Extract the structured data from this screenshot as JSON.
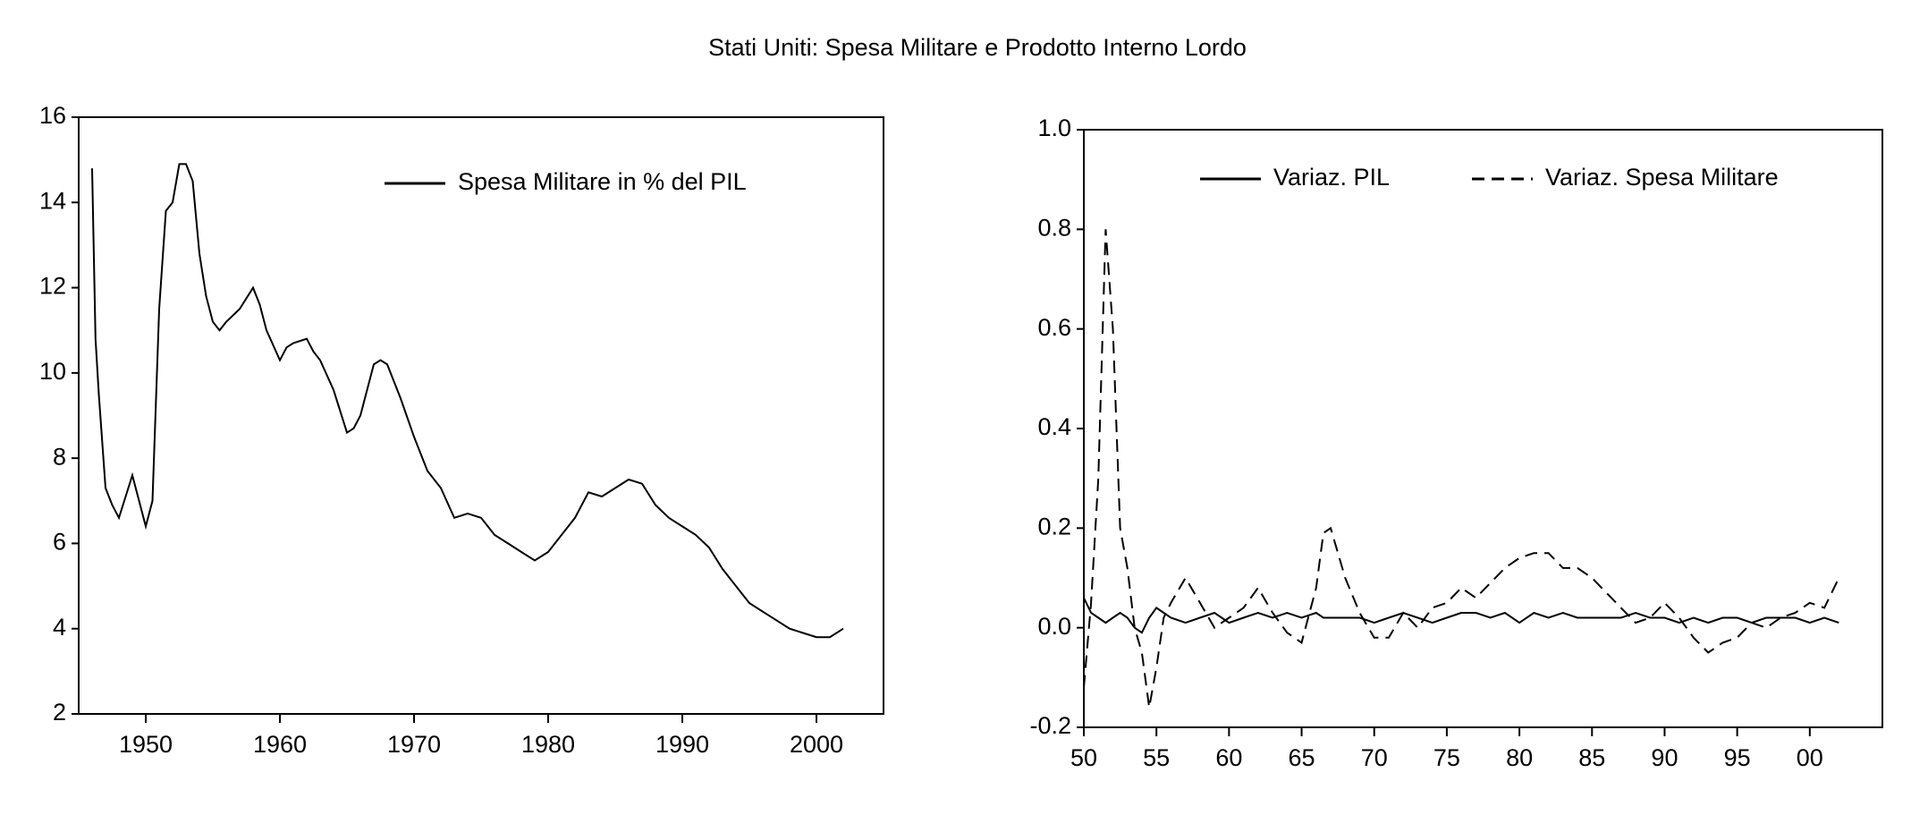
{
  "title": "Stati Uniti: Spesa Militare e Prodotto Interno Lordo",
  "chart_data": [
    {
      "type": "line",
      "x": [
        1946,
        1946.25,
        1946.5,
        1947,
        1947.5,
        1948,
        1948.5,
        1949,
        1949.5,
        1950,
        1950.5,
        1951,
        1951.5,
        1952,
        1952.5,
        1953,
        1953.5,
        1954,
        1954.5,
        1955,
        1955.5,
        1956,
        1957,
        1958,
        1958.5,
        1959,
        1960,
        1960.5,
        1961,
        1962,
        1962.5,
        1963,
        1964,
        1965,
        1965.5,
        1966,
        1967,
        1967.5,
        1968,
        1969,
        1970,
        1971,
        1972,
        1973,
        1974,
        1975,
        1976,
        1977,
        1978,
        1979,
        1980,
        1981,
        1982,
        1983,
        1984,
        1985,
        1986,
        1987,
        1988,
        1989,
        1990,
        1991,
        1992,
        1993,
        1994,
        1995,
        1996,
        1997,
        1998,
        1999,
        2000,
        2001,
        2002
      ],
      "series": [
        {
          "name": "Spesa Militare in % del PIL",
          "color": "#000000",
          "line_style": "solid",
          "values": [
            14.8,
            10.8,
            9.5,
            7.3,
            6.9,
            6.6,
            7.1,
            7.6,
            7.0,
            6.4,
            7.0,
            11.5,
            13.8,
            14.0,
            14.9,
            14.9,
            14.5,
            12.8,
            11.8,
            11.2,
            11.0,
            11.2,
            11.5,
            12.0,
            11.6,
            11.0,
            10.3,
            10.6,
            10.7,
            10.8,
            10.5,
            10.3,
            9.6,
            8.6,
            8.7,
            9.0,
            10.2,
            10.3,
            10.2,
            9.4,
            8.5,
            7.7,
            7.3,
            6.6,
            6.7,
            6.6,
            6.2,
            6.0,
            5.8,
            5.6,
            5.8,
            6.2,
            6.6,
            7.2,
            7.1,
            7.3,
            7.5,
            7.4,
            6.9,
            6.6,
            6.4,
            6.2,
            5.9,
            5.4,
            5.0,
            4.6,
            4.4,
            4.2,
            4.0,
            3.9,
            3.8,
            3.8,
            4.0
          ]
        }
      ],
      "xlim": [
        1945,
        2005
      ],
      "xticks": [
        1950,
        1960,
        1970,
        1980,
        1990,
        2000
      ],
      "ylim": [
        2,
        16
      ],
      "yticks": [
        2,
        4,
        6,
        8,
        10,
        12,
        14,
        16
      ],
      "grid": false
    },
    {
      "type": "line",
      "x": [
        1950,
        1950.5,
        1951,
        1951.5,
        1952,
        1952.5,
        1953,
        1953.5,
        1954,
        1954.5,
        1955,
        1955.5,
        1956,
        1957,
        1958,
        1959,
        1960,
        1961,
        1962,
        1963,
        1964,
        1965,
        1966,
        1966.5,
        1967,
        1968,
        1969,
        1970,
        1971,
        1972,
        1973,
        1974,
        1975,
        1976,
        1977,
        1978,
        1979,
        1980,
        1981,
        1982,
        1983,
        1984,
        1985,
        1986,
        1987,
        1988,
        1989,
        1990,
        1991,
        1992,
        1993,
        1994,
        1995,
        1996,
        1997,
        1998,
        1999,
        2000,
        2001,
        2002
      ],
      "series": [
        {
          "name": "Variaz. PIL",
          "color": "#000000",
          "line_style": "solid",
          "values": [
            0.06,
            0.03,
            0.02,
            0.01,
            0.02,
            0.03,
            0.02,
            0.0,
            -0.01,
            0.02,
            0.04,
            0.03,
            0.02,
            0.01,
            0.02,
            0.03,
            0.01,
            0.02,
            0.03,
            0.02,
            0.03,
            0.02,
            0.03,
            0.02,
            0.02,
            0.02,
            0.02,
            0.01,
            0.02,
            0.03,
            0.02,
            0.01,
            0.02,
            0.03,
            0.03,
            0.02,
            0.03,
            0.01,
            0.03,
            0.02,
            0.03,
            0.02,
            0.02,
            0.02,
            0.02,
            0.03,
            0.02,
            0.02,
            0.01,
            0.02,
            0.01,
            0.02,
            0.02,
            0.01,
            0.02,
            0.02,
            0.02,
            0.01,
            0.02,
            0.01
          ]
        },
        {
          "name": "Variaz. Spesa Militare",
          "color": "#000000",
          "line_style": "dashed",
          "values": [
            -0.12,
            0.05,
            0.3,
            0.8,
            0.6,
            0.2,
            0.12,
            0.0,
            -0.05,
            -0.16,
            -0.08,
            0.02,
            0.05,
            0.1,
            0.05,
            0.0,
            0.02,
            0.04,
            0.08,
            0.03,
            -0.01,
            -0.03,
            0.08,
            0.19,
            0.2,
            0.1,
            0.03,
            -0.02,
            -0.02,
            0.03,
            0.0,
            0.04,
            0.05,
            0.08,
            0.06,
            0.09,
            0.12,
            0.14,
            0.15,
            0.15,
            0.12,
            0.12,
            0.1,
            0.07,
            0.04,
            0.01,
            0.02,
            0.05,
            0.02,
            -0.02,
            -0.05,
            -0.03,
            -0.02,
            0.01,
            0.0,
            0.02,
            0.03,
            0.05,
            0.04,
            0.1
          ]
        }
      ],
      "xlim": [
        1950,
        2005
      ],
      "xticks": [
        {
          "value": 1950,
          "label": "50"
        },
        {
          "value": 1955,
          "label": "55"
        },
        {
          "value": 1960,
          "label": "60"
        },
        {
          "value": 1965,
          "label": "65"
        },
        {
          "value": 1970,
          "label": "70"
        },
        {
          "value": 1975,
          "label": "75"
        },
        {
          "value": 1980,
          "label": "80"
        },
        {
          "value": 1985,
          "label": "85"
        },
        {
          "value": 1990,
          "label": "90"
        },
        {
          "value": 1995,
          "label": "95"
        },
        {
          "value": 2000,
          "label": "00"
        }
      ],
      "ylim": [
        -0.2,
        1.0
      ],
      "yticks": [
        -0.2,
        {
          "value": 0,
          "label": "0.0"
        },
        0.2,
        0.4,
        0.6,
        0.8,
        {
          "value": 1,
          "label": "1.0"
        }
      ],
      "grid": false
    }
  ]
}
